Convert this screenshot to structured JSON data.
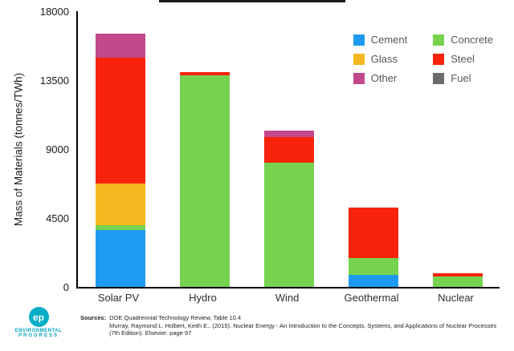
{
  "chart_data": {
    "type": "bar",
    "stacked": true,
    "title": "",
    "ylabel": "Mass of Materials (tonnes/TWh)",
    "ylim": [
      0,
      18000
    ],
    "yticks": [
      0,
      4500,
      9000,
      13500,
      18000
    ],
    "grid": false,
    "legend_position": "top-right-inside",
    "categories": [
      "Solar PV",
      "Hydro",
      "Wind",
      "Geothermal",
      "Nuclear"
    ],
    "stack_order": [
      "Cement",
      "Concrete",
      "Glass",
      "Steel",
      "Other",
      "Fuel"
    ],
    "legend_order": [
      "Cement",
      "Concrete",
      "Glass",
      "Steel",
      "Other",
      "Fuel"
    ],
    "series": [
      {
        "name": "Cement",
        "values": [
          3700,
          0,
          0,
          800,
          0
        ]
      },
      {
        "name": "Concrete",
        "values": [
          350,
          13800,
          8100,
          1100,
          700
        ]
      },
      {
        "name": "Glass",
        "values": [
          2700,
          0,
          0,
          0,
          0
        ]
      },
      {
        "name": "Steel",
        "values": [
          8200,
          200,
          1700,
          3300,
          200
        ]
      },
      {
        "name": "Other",
        "values": [
          1600,
          0,
          400,
          0,
          0
        ]
      },
      {
        "name": "Fuel",
        "values": [
          0,
          0,
          0,
          0,
          0
        ]
      }
    ],
    "colors": {
      "Cement": "#1E9BF0",
      "Concrete": "#77D34F",
      "Glass": "#F5B820",
      "Steel": "#F8230C",
      "Other": "#C2498B",
      "Fuel": "#6B6B6B"
    }
  },
  "footer": {
    "sources": {
      "label": "Sources:",
      "line1": "DOE Quadrennial Technology Review, Table 10.4",
      "line2": "Murray, Raymond L. Holbert, Keith E.. (2015). Nuclear Energy - An Introduction to the Concepts, Systems, and Applications of Nuclear Processes",
      "line3": "(7th Edition). Elsevier. page 97"
    },
    "logo": {
      "initials": "ep",
      "line1": "ENVIRONMENTAL",
      "line2": "PROGRESS"
    }
  }
}
